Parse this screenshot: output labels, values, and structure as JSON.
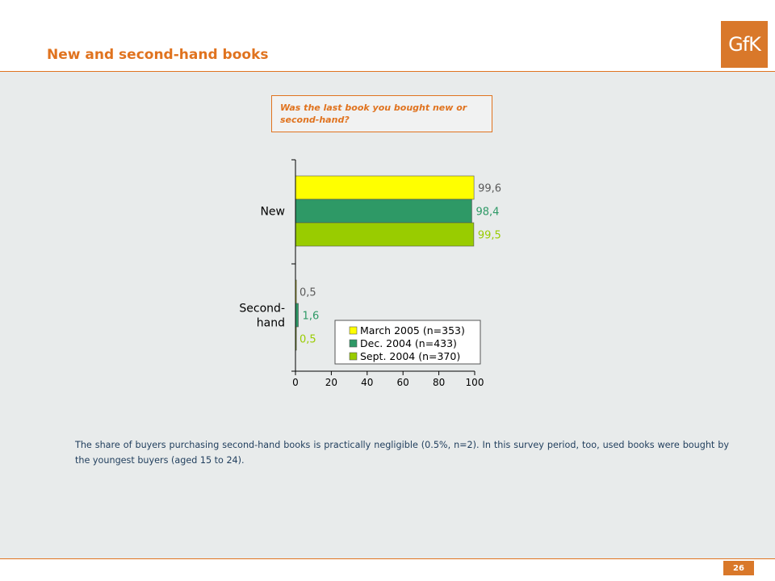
{
  "header": {
    "title": "New and second-hand books",
    "logo_text": "GfK"
  },
  "question": "Was the last book you bought new or second-hand?",
  "note": "The share of buyers purchasing second-hand books is practically negligible (0.5%, n=2). In this survey period, too, used books were bought by the youngest buyers (aged 15 to 24).",
  "page_number": "26",
  "colors": {
    "accent": "#e0731f",
    "panel": "#e8ebeb",
    "march_2005": "#ffff00",
    "dec_2004": "#2e9966",
    "sept_2004": "#99cc00"
  },
  "chart_data": {
    "type": "bar",
    "orientation": "horizontal",
    "categories": [
      "New",
      "Second-hand"
    ],
    "category_labels": [
      [
        "New"
      ],
      [
        "Second-",
        "hand"
      ]
    ],
    "series": [
      {
        "name": "March 2005 (n=353)",
        "values": [
          99.6,
          0.5
        ],
        "labels": [
          "99,6",
          "0,5"
        ],
        "color": "#ffff00",
        "label_color": "#5a5a5a"
      },
      {
        "name": "Dec. 2004 (n=433)",
        "values": [
          98.4,
          1.6
        ],
        "labels": [
          "98,4",
          "1,6"
        ],
        "color": "#2e9966",
        "label_color": "#2e9966"
      },
      {
        "name": "Sept. 2004 (n=370)",
        "values": [
          99.5,
          0.5
        ],
        "labels": [
          "99,5",
          "0,5"
        ],
        "color": "#99cc00",
        "label_color": "#99cc00"
      }
    ],
    "xlim": [
      0,
      100
    ],
    "xticks": [
      "0",
      "20",
      "40",
      "60",
      "80",
      "100"
    ],
    "grid": false,
    "legend_position": "bottom-right"
  }
}
